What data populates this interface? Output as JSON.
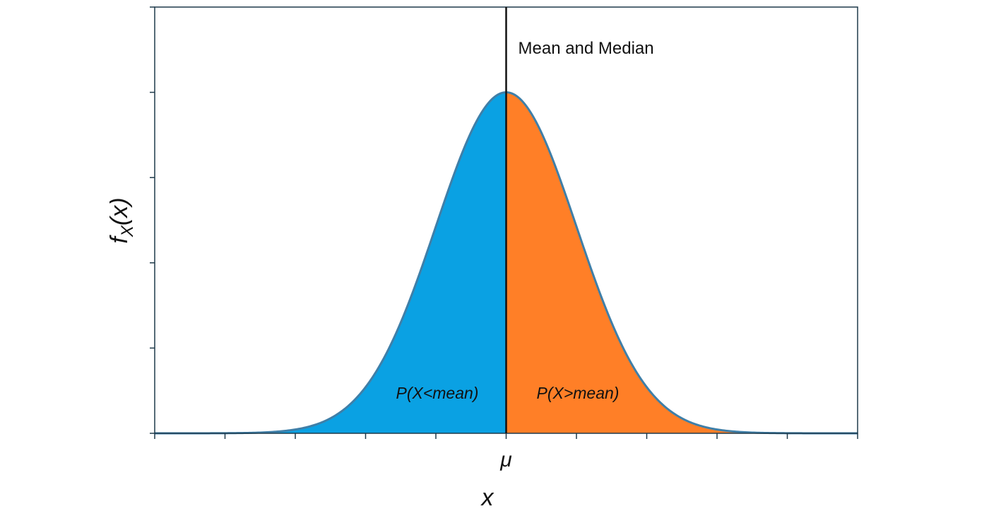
{
  "chart_data": {
    "type": "area",
    "title": "",
    "xlabel": "x",
    "ylabel": {
      "base": "f",
      "subscript": "X",
      "arg": "(x)"
    },
    "x_tick_label": "μ",
    "distribution": "normal",
    "mean": 0,
    "sd": 1,
    "xlim": [
      -5,
      5
    ],
    "ylim": [
      0,
      0.5
    ],
    "x_ticks": [
      -5,
      -4,
      -3,
      -2,
      -1,
      0,
      1,
      2,
      3,
      4,
      5
    ],
    "y_ticks": [
      0,
      0.1,
      0.2,
      0.3,
      0.4,
      0.5
    ],
    "regions": [
      {
        "label": "P(X<mean)",
        "from": -5,
        "to": 0,
        "color": "#0AA1E3"
      },
      {
        "label": "P(X>mean)",
        "from": 0,
        "to": 5,
        "color": "#FF7F27"
      }
    ],
    "vline": {
      "x": 0,
      "label": "Mean and Median"
    },
    "curve_color": "#3F7FA8",
    "axis_color": "#1F3A4A",
    "grid": false
  }
}
